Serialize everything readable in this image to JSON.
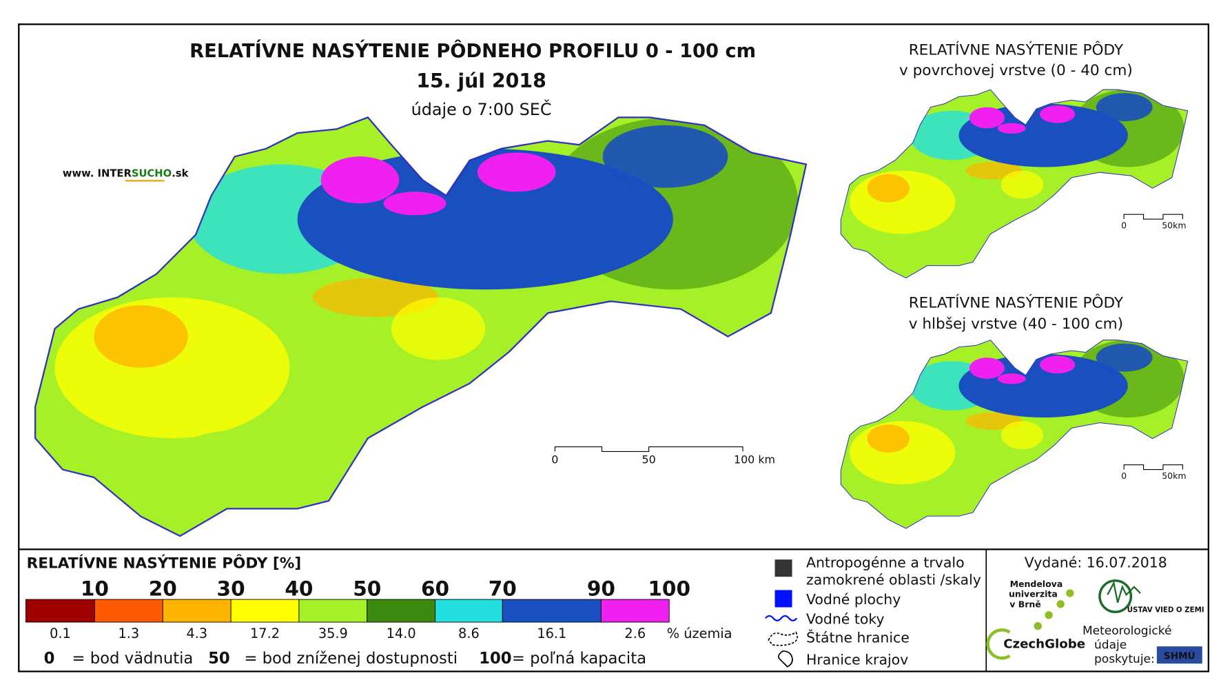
{
  "header": {
    "title": "RELATÍVNE NASÝTENIE PÔDNEHO PROFILU 0 - 100 cm",
    "date": "15. júl 2018",
    "time_note": "údaje o 7:00 SEČ"
  },
  "website": {
    "prefix": "www. INTER",
    "highlight": "SUCHO",
    "suffix": ".sk"
  },
  "main_scale": [
    "0",
    "50",
    "100 km"
  ],
  "insets": [
    {
      "title": "RELATÍVNE NASÝTENIE PÔDY",
      "subtitle": "v povrchovej vrstve (0 - 40 cm)",
      "scale": [
        "0",
        "50km"
      ]
    },
    {
      "title": "RELATÍVNE NASÝTENIE PÔDY",
      "subtitle": "v hlbšej vrstve (40 - 100 cm)",
      "scale": [
        "0",
        "50km"
      ]
    }
  ],
  "legend": {
    "title": "RELATÍVNE NASÝTENIE PÔDY [%]",
    "boundaries": [
      "10",
      "20",
      "30",
      "40",
      "50",
      "60",
      "70",
      "90",
      "100"
    ],
    "classes": [
      {
        "color": "#a00000",
        "share": "0.1"
      },
      {
        "color": "#ff5a00",
        "share": "1.3"
      },
      {
        "color": "#ffb400",
        "share": "4.3"
      },
      {
        "color": "#ffff00",
        "share": "17.2"
      },
      {
        "color": "#a6f028",
        "share": "35.9"
      },
      {
        "color": "#3a8a10",
        "share": "14.0"
      },
      {
        "color": "#22e0e0",
        "share": "8.6"
      },
      {
        "color": "#1a4fc0",
        "share": "16.1"
      },
      {
        "color": "#f020f0",
        "share": "2.6"
      }
    ],
    "share_unit": "% územia",
    "notes": [
      {
        "key": "0",
        "text": "= bod vädnutia"
      },
      {
        "key": "50",
        "text": "= bod zníženej dostupnosti"
      },
      {
        "key": "100",
        "text": "= poľná kapacita"
      }
    ]
  },
  "symbols": [
    "Antropogénne a trvalo",
    "zamokrené oblasti /skaly",
    "Vodné plochy",
    "Vodné toky",
    "Štátne hranice",
    "Hranice krajov"
  ],
  "issued": "Vydané: 16.07.2018",
  "logos": {
    "mendel": [
      "Mendelova",
      "univerzita",
      "v Brně"
    ],
    "czechglobe": "CzechGlobe",
    "uvz": "ÚSTAV VIED O ZEMI",
    "meteo": [
      "Meteorologické",
      "údaje",
      "poskytuje:"
    ],
    "shmu": "SHMÚ"
  }
}
